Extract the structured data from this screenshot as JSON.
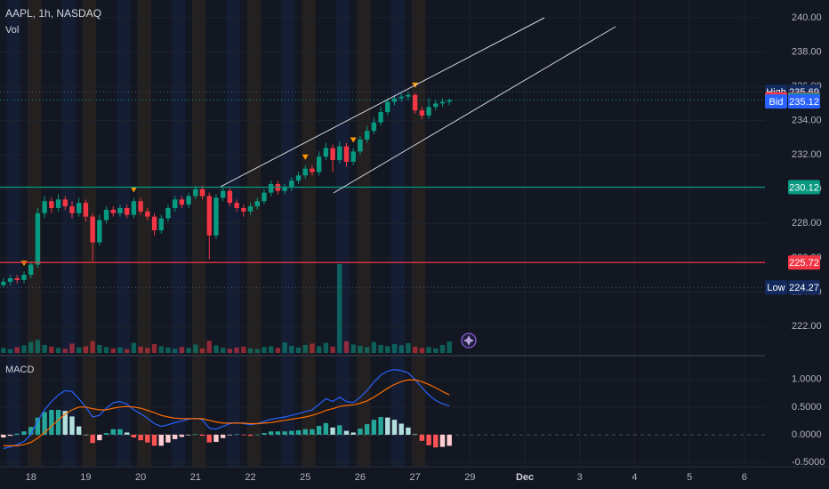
{
  "chart_data": [
    {
      "type": "candlestick",
      "title": "AAPL, 1h, NASDAQ",
      "xlim": [
        -0.5,
        111
      ],
      "xticks": [
        {
          "value": 4,
          "label": "18"
        },
        {
          "value": 12,
          "label": "19"
        },
        {
          "value": 20,
          "label": "20"
        },
        {
          "value": 28,
          "label": "21"
        },
        {
          "value": 36,
          "label": "22"
        },
        {
          "value": 44,
          "label": "25"
        },
        {
          "value": 52,
          "label": "26"
        },
        {
          "value": 60,
          "label": "27"
        },
        {
          "value": 68,
          "label": "29"
        },
        {
          "value": 76,
          "label": "Dec"
        },
        {
          "value": 84,
          "label": "3"
        },
        {
          "value": 92,
          "label": "4"
        },
        {
          "value": 100,
          "label": "5"
        },
        {
          "value": 108,
          "label": "6"
        }
      ],
      "ylim": [
        220.39,
        241.04
      ],
      "yticks": [
        {
          "value": 222,
          "label": "222.00"
        },
        {
          "value": 224,
          "label": "224.00"
        },
        {
          "value": 226,
          "label": "226.00"
        },
        {
          "value": 228,
          "label": "228.00"
        },
        {
          "value": 230,
          "label": "230.00"
        },
        {
          "value": 232,
          "label": "232.00"
        },
        {
          "value": 234,
          "label": "234.00"
        },
        {
          "value": 236,
          "label": "236.00"
        },
        {
          "value": 238,
          "label": "238.00"
        },
        {
          "value": 240,
          "label": "240.00"
        }
      ],
      "grid": true,
      "up_color": "#089981",
      "down_color": "#f23645",
      "signal_color": "#ff9800",
      "open": [
        224.4,
        224.6,
        224.8,
        224.7,
        225.0,
        225.6,
        228.6,
        229.3,
        228.9,
        229.4,
        229.0,
        228.6,
        229.2,
        228.4,
        226.9,
        228.2,
        228.8,
        228.6,
        228.9,
        228.5,
        229.3,
        228.7,
        228.4,
        227.6,
        228.3,
        228.9,
        229.4,
        229.1,
        229.6,
        230.0,
        229.6,
        227.3,
        229.5,
        229.9,
        229.2,
        228.9,
        228.7,
        229.0,
        229.3,
        229.8,
        230.3,
        229.9,
        230.1,
        230.5,
        230.8,
        231.2,
        231.0,
        231.9,
        232.4,
        231.7,
        232.5,
        231.6,
        232.2,
        232.9,
        233.4,
        233.9,
        234.5,
        235.1,
        235.3,
        235.4,
        235.5,
        234.6,
        234.3,
        234.8,
        235.0,
        235.1
      ],
      "high": [
        224.8,
        225.0,
        225.0,
        225.2,
        225.8,
        228.9,
        229.6,
        229.5,
        229.7,
        229.6,
        229.3,
        229.5,
        229.4,
        228.6,
        228.5,
        229.0,
        229.0,
        229.1,
        229.1,
        229.5,
        229.5,
        228.9,
        228.6,
        228.5,
        229.1,
        229.6,
        229.6,
        229.8,
        230.2,
        230.2,
        229.8,
        229.7,
        230.1,
        230.1,
        229.4,
        229.1,
        229.2,
        229.5,
        230.0,
        230.5,
        230.5,
        230.3,
        230.7,
        231.0,
        231.4,
        231.4,
        232.2,
        232.7,
        232.6,
        232.8,
        232.7,
        232.4,
        233.1,
        233.7,
        234.2,
        234.8,
        235.3,
        235.5,
        235.6,
        235.69,
        235.6,
        234.8,
        235.3,
        235.2,
        235.3,
        235.3
      ],
      "low": [
        224.27,
        224.4,
        224.5,
        224.5,
        224.8,
        225.4,
        228.3,
        228.6,
        228.7,
        228.8,
        228.3,
        228.4,
        228.1,
        225.8,
        226.7,
        228.0,
        228.4,
        228.4,
        228.3,
        228.3,
        228.5,
        228.2,
        227.3,
        227.4,
        228.1,
        228.7,
        228.9,
        228.9,
        229.4,
        229.4,
        225.9,
        227.1,
        229.3,
        229.0,
        228.7,
        228.4,
        228.5,
        228.8,
        229.1,
        229.6,
        229.7,
        229.7,
        229.9,
        230.3,
        230.6,
        230.8,
        230.8,
        231.7,
        231.0,
        231.5,
        231.3,
        231.4,
        232.0,
        232.7,
        233.2,
        233.7,
        234.3,
        234.9,
        235.1,
        235.2,
        234.4,
        234.1,
        234.1,
        234.6,
        234.8,
        234.9
      ],
      "close": [
        224.6,
        224.8,
        224.7,
        225.0,
        225.6,
        228.6,
        229.3,
        228.9,
        229.4,
        229.0,
        228.6,
        229.2,
        228.4,
        226.9,
        228.2,
        228.8,
        228.6,
        228.9,
        228.5,
        229.3,
        228.7,
        228.4,
        227.6,
        228.3,
        228.9,
        229.4,
        229.1,
        229.6,
        230.0,
        229.6,
        227.3,
        229.5,
        229.9,
        229.2,
        228.9,
        228.7,
        229.0,
        229.3,
        229.8,
        230.3,
        229.9,
        230.1,
        230.5,
        230.8,
        231.2,
        231.0,
        231.9,
        232.4,
        231.7,
        232.5,
        231.6,
        232.2,
        232.9,
        233.4,
        233.9,
        234.5,
        235.1,
        235.3,
        235.4,
        235.5,
        234.6,
        234.3,
        234.8,
        235.0,
        235.1,
        235.2
      ],
      "signals": [
        3,
        19,
        44,
        51,
        60
      ],
      "price_lines": [
        {
          "name": "High",
          "value": 235.69,
          "color": "#132a5e",
          "line": "dotted"
        },
        {
          "name": "Ask",
          "value": 235.25,
          "color": "#f23645",
          "line": "none"
        },
        {
          "value": 235.2,
          "value_label": "235.20",
          "color": "#089981",
          "line": "dotted"
        },
        {
          "name": "Bid",
          "value": 235.12,
          "color": "#2962ff",
          "line": "none"
        },
        {
          "value": 230.12,
          "color": "#089981",
          "line": "solid"
        },
        {
          "value": 225.72,
          "color": "#f23645",
          "line": "solid"
        },
        {
          "name": "Low",
          "value": 224.27,
          "color": "#132a5e",
          "line": "dotted"
        }
      ]
    },
    {
      "type": "volume",
      "title": "Vol",
      "values": [
        1.2,
        0.9,
        1.4,
        1.8,
        2.6,
        3.1,
        1.9,
        1.5,
        1.2,
        1.0,
        2.2,
        1.3,
        1.6,
        2.8,
        1.9,
        1.4,
        1.1,
        1.3,
        0.9,
        2.4,
        1.5,
        1.2,
        2.1,
        1.6,
        1.3,
        1.0,
        1.4,
        1.2,
        2.0,
        1.1,
        2.9,
        1.8,
        1.2,
        1.0,
        1.3,
        1.5,
        1.1,
        0.9,
        1.4,
        1.6,
        1.2,
        2.5,
        1.7,
        1.3,
        1.9,
        2.2,
        1.6,
        2.4,
        1.5,
        21.0,
        2.8,
        2.0,
        1.7,
        1.4,
        2.6,
        1.9,
        1.6,
        2.1,
        1.8,
        2.3,
        1.5,
        1.2,
        1.4,
        1.1,
        1.9,
        2.7
      ]
    },
    {
      "type": "macd",
      "title": "MACD",
      "ylim": [
        -0.58,
        1.35
      ],
      "yticks": [
        {
          "value": -0.5,
          "label": "-0.5000"
        },
        {
          "value": 0,
          "label": "0.0000"
        },
        {
          "value": 0.5,
          "label": "0.5000"
        },
        {
          "value": 1,
          "label": "1.0000"
        }
      ],
      "series": [
        {
          "color": "#2962ff",
          "values": [
            -0.25,
            -0.22,
            -0.18,
            -0.12,
            0.0,
            0.25,
            0.45,
            0.6,
            0.72,
            0.8,
            0.78,
            0.65,
            0.5,
            0.32,
            0.35,
            0.48,
            0.58,
            0.6,
            0.55,
            0.45,
            0.38,
            0.3,
            0.2,
            0.15,
            0.18,
            0.22,
            0.25,
            0.28,
            0.3,
            0.27,
            0.12,
            0.1,
            0.15,
            0.2,
            0.22,
            0.2,
            0.18,
            0.2,
            0.24,
            0.28,
            0.3,
            0.32,
            0.35,
            0.38,
            0.42,
            0.45,
            0.55,
            0.65,
            0.6,
            0.68,
            0.6,
            0.58,
            0.68,
            0.8,
            0.95,
            1.08,
            1.15,
            1.18,
            1.16,
            1.12,
            1.0,
            0.85,
            0.72,
            0.62,
            0.56,
            0.52
          ]
        },
        {
          "color": "#ff6d00",
          "values": [
            -0.2,
            -0.2,
            -0.2,
            -0.18,
            -0.14,
            -0.06,
            0.04,
            0.15,
            0.27,
            0.37,
            0.45,
            0.5,
            0.5,
            0.47,
            0.45,
            0.45,
            0.48,
            0.5,
            0.51,
            0.5,
            0.48,
            0.44,
            0.4,
            0.35,
            0.32,
            0.3,
            0.29,
            0.29,
            0.29,
            0.29,
            0.26,
            0.23,
            0.21,
            0.21,
            0.21,
            0.21,
            0.2,
            0.2,
            0.21,
            0.22,
            0.24,
            0.26,
            0.28,
            0.3,
            0.32,
            0.35,
            0.39,
            0.44,
            0.47,
            0.51,
            0.53,
            0.54,
            0.57,
            0.61,
            0.68,
            0.76,
            0.84,
            0.91,
            0.96,
            0.99,
            0.99,
            0.96,
            0.91,
            0.85,
            0.78,
            0.72
          ]
        }
      ],
      "histogram": [
        -0.05,
        -0.02,
        0.02,
        0.06,
        0.14,
        0.31,
        0.41,
        0.45,
        0.45,
        0.43,
        0.33,
        0.15,
        0.0,
        -0.15,
        -0.1,
        0.03,
        0.1,
        0.1,
        0.04,
        -0.05,
        -0.1,
        -0.14,
        -0.2,
        -0.2,
        -0.14,
        -0.08,
        -0.04,
        -0.01,
        0.01,
        -0.02,
        -0.14,
        -0.13,
        -0.06,
        -0.01,
        0.01,
        -0.01,
        -0.02,
        0.0,
        0.03,
        0.06,
        0.06,
        0.06,
        0.07,
        0.08,
        0.1,
        0.1,
        0.16,
        0.21,
        0.13,
        0.17,
        0.07,
        0.04,
        0.11,
        0.19,
        0.27,
        0.32,
        0.31,
        0.27,
        0.2,
        0.13,
        0.01,
        -0.11,
        -0.19,
        -0.23,
        -0.22,
        -0.2
      ],
      "histogram_colors": [
        "#26a69a",
        "#b2dfdb",
        "#ff5252",
        "#ffcdd2"
      ]
    }
  ]
}
